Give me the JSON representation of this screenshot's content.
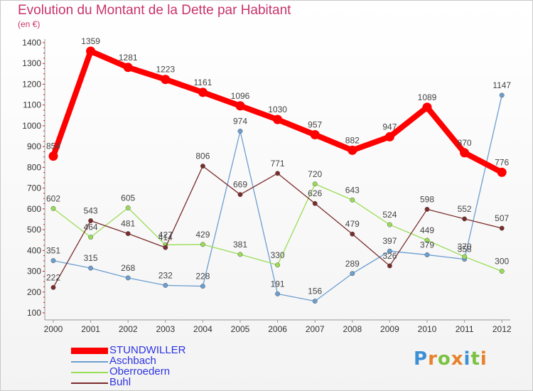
{
  "header": {
    "title": "Evolution du Montant de la Dette par Habitant",
    "unit": "(en €)"
  },
  "chart_data": {
    "type": "line",
    "title": "Evolution du Montant de la Dette par Habitant",
    "subtitle": "(en €)",
    "xlabel": "",
    "ylabel": "",
    "categories": [
      "2000",
      "2001",
      "2002",
      "2003",
      "2004",
      "2005",
      "2006",
      "2007",
      "2008",
      "2009",
      "2010",
      "2011",
      "2012"
    ],
    "yticks": [
      100,
      200,
      300,
      400,
      500,
      600,
      700,
      800,
      900,
      1000,
      1100,
      1200,
      1300,
      1400
    ],
    "ylim": [
      100,
      1400
    ],
    "grid": false,
    "legend_position": "bottom-left",
    "series": [
      {
        "name": "STUNDWILLER",
        "color": "#ff0000",
        "values": [
          854,
          1359,
          1281,
          1223,
          1161,
          1096,
          1030,
          957,
          882,
          947,
          1089,
          870,
          776
        ]
      },
      {
        "name": "Aschbach",
        "color": "#6b9ed1",
        "values": [
          351,
          315,
          268,
          232,
          228,
          974,
          191,
          156,
          289,
          397,
          379,
          358,
          1147
        ]
      },
      {
        "name": "Oberroedern",
        "color": "#99dd55",
        "values": [
          602,
          464,
          605,
          427,
          429,
          381,
          330,
          720,
          643,
          524,
          449,
          370,
          300
        ]
      },
      {
        "name": "Buhl",
        "color": "#7a2b2b",
        "values": [
          222,
          543,
          481,
          414,
          806,
          669,
          771,
          626,
          479,
          326,
          598,
          552,
          507
        ]
      }
    ]
  },
  "logo": {
    "text": "Proxiti",
    "letters": [
      "P",
      "r",
      "o",
      "x",
      "i",
      "t",
      "i"
    ],
    "colors": [
      "#3d8fd6",
      "#e8822a",
      "#7cc242",
      "#e8822a",
      "#3d8fd6",
      "#7cc242",
      "#e8822a"
    ]
  }
}
